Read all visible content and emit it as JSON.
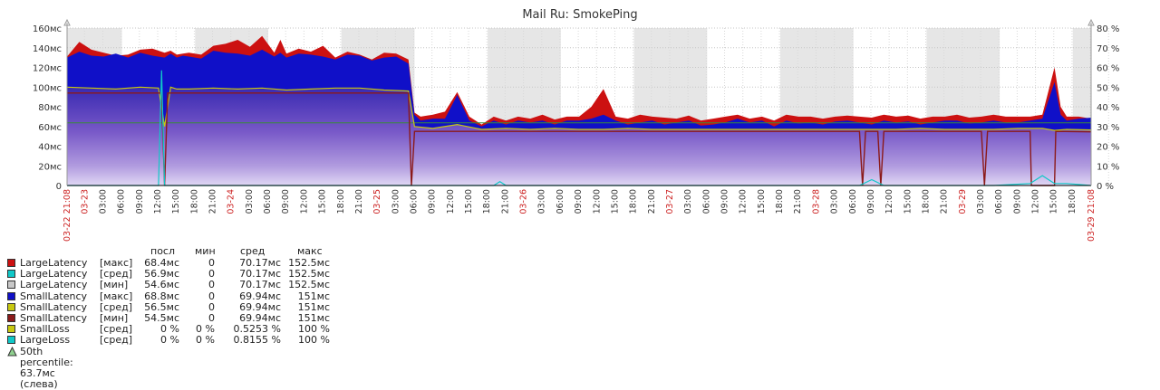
{
  "chart_data": {
    "type": "area",
    "title": "Mail Ru: SmokePing",
    "ylim": [
      0,
      160
    ],
    "y_ticks": [
      "0",
      "20мс",
      "40мс",
      "60мс",
      "80мс",
      "100мс",
      "120мс",
      "140мс",
      "160мс"
    ],
    "y2lim": [
      0,
      80
    ],
    "y2_ticks": [
      "0 %",
      "10 %",
      "20 %",
      "30 %",
      "40 %",
      "50 %",
      "60 %",
      "70 %",
      "80 %"
    ],
    "x_start_label": "03-22 21:08",
    "x_end_label": "03-29 21:08",
    "x_ticks": [
      "03-23",
      "03:00",
      "06:00",
      "09:00",
      "12:00",
      "15:00",
      "18:00",
      "21:00",
      "03-24",
      "03:00",
      "06:00",
      "09:00",
      "12:00",
      "15:00",
      "18:00",
      "21:00",
      "03-25",
      "03:00",
      "06:00",
      "09:00",
      "12:00",
      "15:00",
      "18:00",
      "21:00",
      "03-26",
      "03:00",
      "06:00",
      "09:00",
      "12:00",
      "15:00",
      "18:00",
      "21:00",
      "03-27",
      "03:00",
      "06:00",
      "09:00",
      "12:00",
      "15:00",
      "18:00",
      "21:00",
      "03-28",
      "03:00",
      "06:00",
      "09:00",
      "12:00",
      "15:00",
      "18:00",
      "21:00",
      "03-29",
      "03:00",
      "06:00",
      "09:00",
      "12:00",
      "15:00",
      "18:00"
    ],
    "x_hours_range": [
      0,
      168
    ],
    "night_bands": [
      [
        0,
        9
      ],
      [
        21,
        33
      ],
      [
        45,
        57
      ],
      [
        69,
        81
      ],
      [
        93,
        105
      ],
      [
        117,
        129
      ],
      [
        141,
        153
      ],
      [
        165,
        168
      ]
    ],
    "percentile_line": 63.7,
    "series": [
      {
        "name": "LargeLatency",
        "agg": "макс",
        "color": "#cc1111",
        "x": [
          0,
          2,
          4,
          6,
          8,
          10,
          12,
          14,
          16,
          17,
          18,
          19,
          20,
          22,
          24,
          26,
          28,
          30,
          32,
          34,
          35,
          36,
          38,
          40,
          42,
          44,
          46,
          48,
          50,
          52,
          54,
          56,
          57,
          58,
          60,
          62,
          64,
          66,
          68,
          70,
          72,
          74,
          76,
          78,
          80,
          82,
          84,
          86,
          88,
          90,
          92,
          94,
          96,
          98,
          100,
          102,
          104,
          106,
          108,
          110,
          112,
          114,
          116,
          118,
          120,
          122,
          124,
          126,
          128,
          130,
          132,
          134,
          136,
          138,
          140,
          142,
          144,
          146,
          148,
          150,
          152,
          154,
          156,
          158,
          160,
          162,
          163,
          164,
          166,
          168
        ],
        "values": [
          131,
          146,
          138,
          135,
          132,
          133,
          138,
          139,
          135,
          137,
          133,
          134,
          135,
          133,
          142,
          144,
          148,
          141,
          152,
          135,
          148,
          134,
          139,
          136,
          142,
          130,
          136,
          133,
          128,
          135,
          134,
          128,
          74,
          70,
          72,
          75,
          95,
          70,
          62,
          70,
          66,
          70,
          68,
          72,
          67,
          70,
          70,
          80,
          98,
          70,
          68,
          72,
          70,
          69,
          68,
          71,
          66,
          68,
          70,
          72,
          68,
          70,
          66,
          72,
          70,
          70,
          68,
          70,
          71,
          70,
          69,
          72,
          70,
          71,
          68,
          70,
          70,
          72,
          69,
          70,
          72,
          70,
          70,
          70,
          72,
          120,
          80,
          70,
          70,
          68
        ]
      },
      {
        "name": "SmallLatency",
        "agg": "макс",
        "color": "#1010c8",
        "x": [
          0,
          2,
          4,
          6,
          8,
          10,
          12,
          14,
          16,
          17,
          18,
          19,
          20,
          22,
          24,
          26,
          28,
          30,
          32,
          34,
          35,
          36,
          38,
          40,
          42,
          44,
          46,
          48,
          50,
          52,
          54,
          56,
          57,
          58,
          60,
          62,
          64,
          66,
          68,
          70,
          72,
          74,
          76,
          78,
          80,
          82,
          84,
          86,
          88,
          90,
          92,
          94,
          96,
          98,
          100,
          102,
          104,
          106,
          108,
          110,
          112,
          114,
          116,
          118,
          120,
          122,
          124,
          126,
          128,
          130,
          132,
          134,
          136,
          138,
          140,
          142,
          144,
          146,
          148,
          150,
          152,
          154,
          156,
          158,
          160,
          162,
          163,
          164,
          166,
          168
        ],
        "values": [
          130,
          136,
          132,
          131,
          134,
          130,
          135,
          132,
          130,
          134,
          130,
          132,
          131,
          129,
          137,
          135,
          134,
          132,
          138,
          131,
          135,
          130,
          134,
          133,
          131,
          128,
          133,
          132,
          127,
          130,
          131,
          124,
          72,
          66,
          68,
          68,
          92,
          66,
          60,
          66,
          62,
          66,
          64,
          66,
          62,
          66,
          66,
          68,
          72,
          66,
          62,
          64,
          66,
          62,
          64,
          66,
          61,
          62,
          64,
          68,
          64,
          66,
          60,
          66,
          63,
          64,
          62,
          65,
          66,
          64,
          62,
          66,
          64,
          65,
          62,
          64,
          66,
          66,
          63,
          64,
          66,
          64,
          64,
          66,
          68,
          105,
          72,
          66,
          68,
          69
        ]
      },
      {
        "name": "SmallLatency",
        "agg": "сред",
        "color": "#c8c810",
        "x": [
          0,
          4,
          8,
          12,
          15,
          16,
          17,
          18,
          20,
          24,
          28,
          32,
          36,
          40,
          44,
          48,
          52,
          56,
          57,
          60,
          64,
          68,
          72,
          76,
          80,
          84,
          88,
          92,
          96,
          100,
          104,
          108,
          112,
          116,
          120,
          124,
          128,
          132,
          136,
          140,
          144,
          148,
          152,
          156,
          160,
          162,
          164,
          168
        ],
        "values": [
          100,
          99,
          98,
          100,
          99,
          60,
          100,
          98,
          98,
          99,
          98,
          99,
          97,
          98,
          99,
          99,
          97,
          96,
          60,
          58,
          62,
          57,
          58,
          57,
          58,
          57,
          57,
          58,
          57,
          57,
          57,
          57,
          57,
          57,
          57,
          57,
          57,
          57,
          57,
          58,
          57,
          57,
          57,
          58,
          58,
          56,
          57,
          56.5
        ]
      },
      {
        "name": "SmallLatency",
        "agg": "мин",
        "color": "#8b1a1a",
        "x": [
          0,
          15.5,
          16,
          16.5,
          56,
          56.5,
          57,
          130,
          130.5,
          131,
          131.5,
          133,
          133.5,
          134,
          150,
          150.5,
          151,
          158,
          158.2,
          162,
          162.2,
          168
        ],
        "values": [
          94,
          94,
          0,
          94,
          94,
          0,
          55,
          55,
          0,
          55,
          55,
          55,
          0,
          55,
          55,
          0,
          55,
          55,
          0,
          0,
          55,
          54.5
        ]
      },
      {
        "name": "LargeLoss",
        "agg": "сред",
        "color": "#10c8c8",
        "x": [
          0,
          15,
          15.5,
          16,
          16.5,
          17,
          56,
          58,
          70,
          71,
          72,
          130,
          132,
          134,
          136,
          150,
          152,
          158,
          160,
          161,
          162,
          164,
          168
        ],
        "values": [
          0,
          0,
          117,
          0,
          0,
          0,
          0,
          0,
          0,
          4,
          0,
          0,
          6,
          0,
          0,
          0,
          0,
          2,
          10,
          6,
          2,
          2,
          0
        ]
      }
    ]
  },
  "legend": {
    "headers": [
      "посл",
      "мин",
      "сред",
      "макс"
    ],
    "rows": [
      {
        "name": "LargeLatency",
        "agg": "[макс]",
        "color": "#cc1111",
        "last": "68.4мс",
        "min": "0",
        "avg": "70.17мс",
        "max": "152.5мс"
      },
      {
        "name": "LargeLatency",
        "agg": "[сред]",
        "color": "#10c8c8",
        "last": "56.9мс",
        "min": "0",
        "avg": "70.17мс",
        "max": "152.5мс"
      },
      {
        "name": "LargeLatency",
        "agg": "[мин]",
        "color": "#c8c8c8",
        "last": "54.6мс",
        "min": "0",
        "avg": "70.17мс",
        "max": "152.5мс"
      },
      {
        "name": "SmallLatency",
        "agg": "[макс]",
        "color": "#1010c8",
        "last": "68.8мс",
        "min": "0",
        "avg": "69.94мс",
        "max": "151мс"
      },
      {
        "name": "SmallLatency",
        "agg": "[сред]",
        "color": "#c8c810",
        "last": "56.5мс",
        "min": "0",
        "avg": "69.94мс",
        "max": "151мс"
      },
      {
        "name": "SmallLatency",
        "agg": "[мин]",
        "color": "#8b1a1a",
        "last": "54.5мс",
        "min": "0",
        "avg": "69.94мс",
        "max": "151мс"
      },
      {
        "name": "SmallLoss",
        "agg": "[сред]",
        "color": "#c8c810",
        "last": "0 %",
        "min": "0 %",
        "avg": "0.5253 %",
        "max": "100 %"
      },
      {
        "name": "LargeLoss",
        "agg": "[сред]",
        "color": "#10c8c8",
        "last": "0 %",
        "min": "0 %",
        "avg": "0.8155 %",
        "max": "100 %"
      }
    ],
    "percentile_text": "50th percentile: 63.7мс (слева)"
  }
}
